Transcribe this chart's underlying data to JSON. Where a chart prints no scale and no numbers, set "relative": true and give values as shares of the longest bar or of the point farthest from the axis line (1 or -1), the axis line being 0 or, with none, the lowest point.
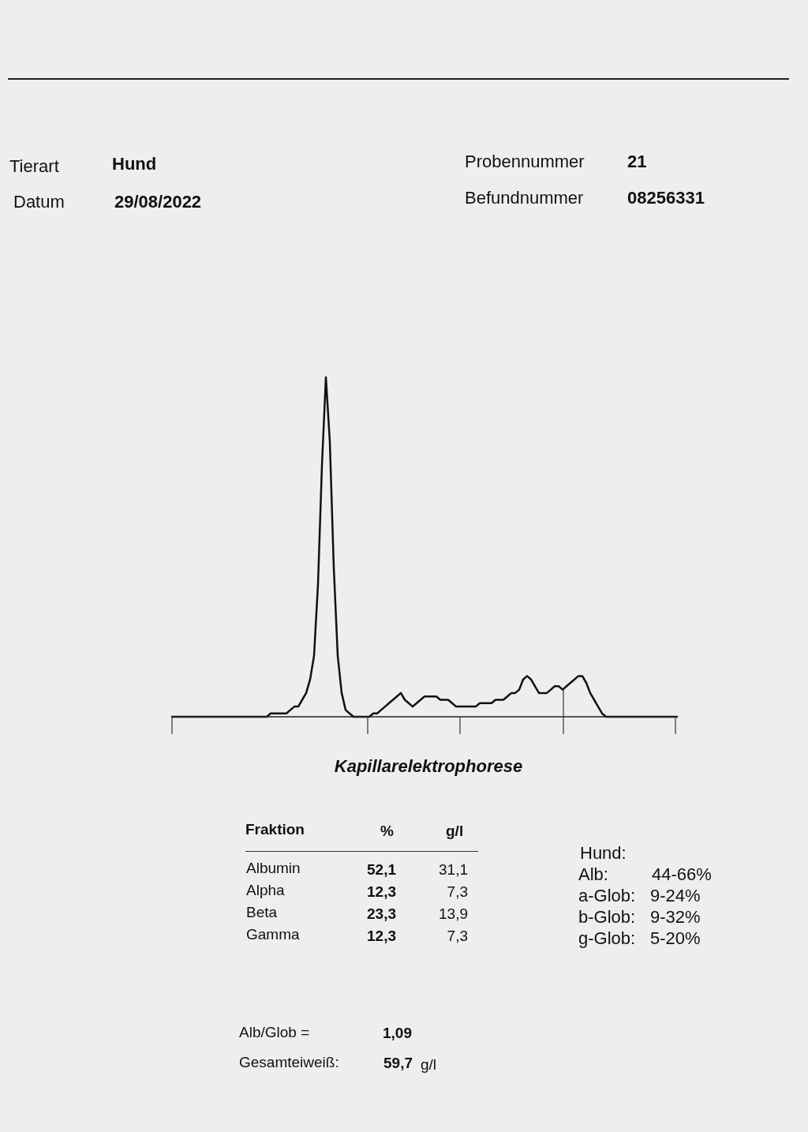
{
  "chart_data": {
    "type": "line",
    "title": "Kapillarelektrophorese",
    "relative": true,
    "categories": [
      null,
      null,
      null,
      null,
      null,
      null,
      null,
      null,
      null,
      null,
      null,
      null,
      null,
      null,
      null,
      null,
      null,
      null,
      null,
      null,
      null,
      null,
      null,
      null,
      null,
      null,
      null,
      null,
      null,
      null,
      null,
      null,
      null,
      null,
      null,
      null,
      null,
      null,
      null,
      null,
      null,
      null,
      null,
      null,
      null,
      null,
      null,
      null,
      null,
      null,
      null,
      null,
      null,
      null,
      null,
      null,
      null,
      null,
      null,
      null,
      null,
      null,
      null,
      null,
      null,
      null,
      null,
      null,
      null,
      null,
      null,
      null,
      null,
      null,
      null,
      null,
      null,
      null,
      null,
      null,
      null,
      null,
      null,
      null,
      null,
      null,
      null,
      null,
      null,
      null,
      null,
      null,
      null,
      null,
      null,
      null,
      null,
      null,
      null,
      null,
      null,
      null,
      null,
      null,
      null,
      null,
      null,
      null,
      null,
      null,
      null,
      null,
      null,
      null,
      null,
      null,
      null,
      null,
      null,
      null,
      null,
      null,
      null,
      null,
      null,
      null,
      null,
      null,
      null
    ],
    "series": [
      {
        "color": "#111111",
        "values": [
          0,
          0,
          0,
          0,
          0,
          0,
          0,
          0,
          0,
          0,
          0,
          0,
          0,
          0,
          0,
          0,
          0,
          0,
          0,
          0,
          0,
          0,
          0,
          0,
          0,
          0.01,
          0.01,
          0.01,
          0.01,
          0.01,
          0.02,
          0.03,
          0.03,
          0.05,
          0.07,
          0.11,
          0.18,
          0.39,
          0.74,
          1,
          0.81,
          0.44,
          0.18,
          0.07,
          0.02,
          0.01,
          0,
          0,
          0,
          0,
          0,
          0.01,
          0.01,
          0.02,
          0.03,
          0.04,
          0.05,
          0.06,
          0.07,
          0.05,
          0.04,
          0.03,
          0.04,
          0.05,
          0.06,
          0.06,
          0.06,
          0.06,
          0.05,
          0.05,
          0.05,
          0.04,
          0.03,
          0.03,
          0.03,
          0.03,
          0.03,
          0.03,
          0.04,
          0.04,
          0.04,
          0.04,
          0.05,
          0.05,
          0.05,
          0.06,
          0.07,
          0.07,
          0.08,
          0.11,
          0.12,
          0.11,
          0.09,
          0.07,
          0.07,
          0.07,
          0.08,
          0.09,
          0.09,
          0.08,
          0.09,
          0.1,
          0.11,
          0.12,
          0.12,
          0.1,
          0.07,
          0.05,
          0.03,
          0.01,
          0,
          0,
          0,
          0,
          0,
          0,
          0,
          0,
          0,
          0,
          0,
          0,
          0,
          0,
          0,
          0,
          0,
          0,
          0
        ]
      }
    ],
    "annotations": [
      "Tierart",
      "Hund",
      "Datum",
      "29/08/2022",
      "Probennummer",
      "21",
      "Befundnummer",
      "08256331",
      "Fraktion",
      "%",
      "g/l",
      "Albumin",
      "52,1",
      "31,1",
      "Alpha",
      "12,3",
      "7,3",
      "Beta",
      "23,3",
      "13,9",
      "Gamma",
      "12,3",
      "7,3",
      "Hund:",
      "Alb:",
      "44-66%",
      "a-Glob:",
      "9-24%",
      "b-Glob:",
      "9-32%",
      "g-Glob:",
      "5-20%",
      "Alb/Glob =",
      "1,09",
      "Gesamteiweiß:",
      "59,7",
      "g/l"
    ]
  }
}
